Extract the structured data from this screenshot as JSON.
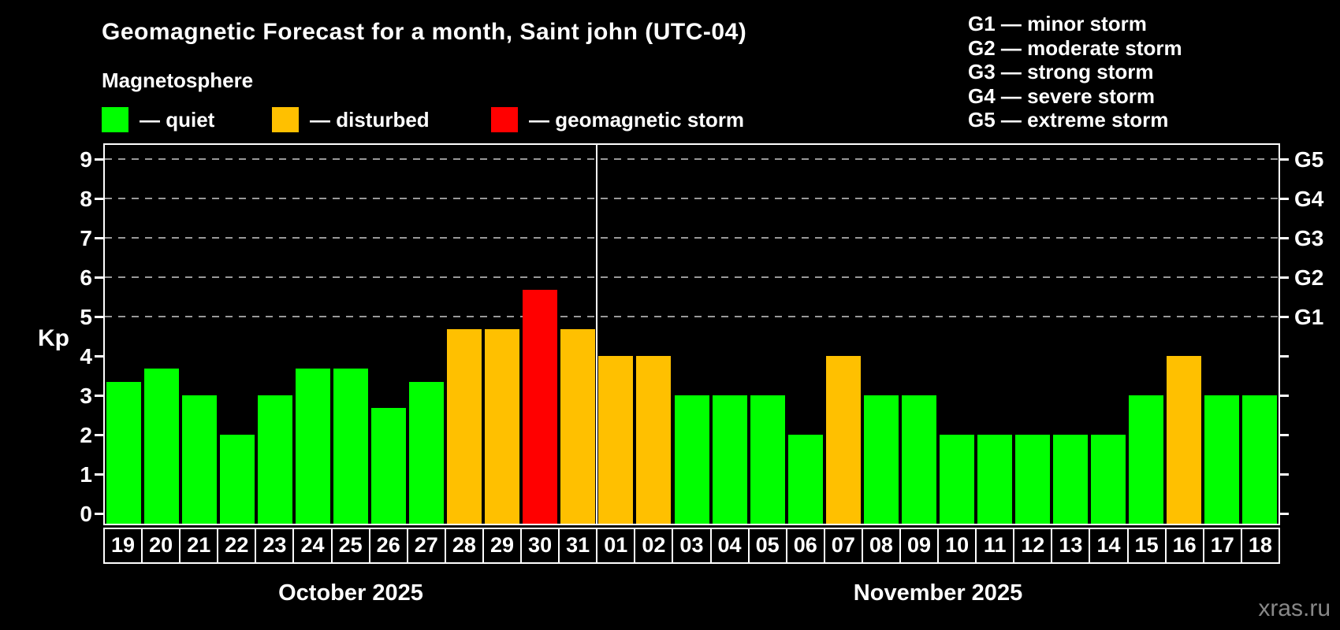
{
  "header": {
    "title": "Geomagnetic Forecast for a month, Saint john (UTC-04)",
    "subtitle": "Magnetosphere"
  },
  "legend": {
    "items": [
      {
        "status": "quiet",
        "label": "— quiet"
      },
      {
        "status": "disturbed",
        "label": "— disturbed"
      },
      {
        "status": "storm",
        "label": "— geomagnetic storm"
      }
    ]
  },
  "g_scale_legend": {
    "items": [
      "G1 — minor storm",
      "G2 — moderate storm",
      "G3 — strong storm",
      "G4 — severe storm",
      "G5 — extreme storm"
    ]
  },
  "watermark": "xras.ru",
  "chart_data": {
    "type": "bar",
    "title": "Geomagnetic Forecast for a month, Saint john (UTC-04)",
    "ylabel": "Kp",
    "ylim": [
      0,
      9.4
    ],
    "y_ticks": [
      0,
      1,
      2,
      3,
      4,
      5,
      6,
      7,
      8,
      9
    ],
    "gridlines_at_kp": [
      5,
      6,
      7,
      8,
      9
    ],
    "grid": "dashed-horizontal",
    "right_axis_labels": [
      {
        "code": "G1",
        "kp": 5
      },
      {
        "code": "G2",
        "kp": 6
      },
      {
        "code": "G3",
        "kp": 7
      },
      {
        "code": "G4",
        "kp": 8
      },
      {
        "code": "G5",
        "kp": 9
      }
    ],
    "status_colors": {
      "quiet": "#00ff00",
      "disturbed": "#ffc000",
      "storm": "#ff0000"
    },
    "groups": [
      {
        "month": "October 2025",
        "days": [
          {
            "date": "19",
            "value": 3.33,
            "status": "quiet"
          },
          {
            "date": "20",
            "value": 3.67,
            "status": "quiet"
          },
          {
            "date": "21",
            "value": 3.0,
            "status": "quiet"
          },
          {
            "date": "22",
            "value": 2.0,
            "status": "quiet"
          },
          {
            "date": "23",
            "value": 3.0,
            "status": "quiet"
          },
          {
            "date": "24",
            "value": 3.67,
            "status": "quiet"
          },
          {
            "date": "25",
            "value": 3.67,
            "status": "quiet"
          },
          {
            "date": "26",
            "value": 2.67,
            "status": "quiet"
          },
          {
            "date": "27",
            "value": 3.33,
            "status": "quiet"
          },
          {
            "date": "28",
            "value": 4.67,
            "status": "disturbed"
          },
          {
            "date": "29",
            "value": 4.67,
            "status": "disturbed"
          },
          {
            "date": "30",
            "value": 5.67,
            "status": "storm"
          },
          {
            "date": "31",
            "value": 4.67,
            "status": "disturbed"
          }
        ]
      },
      {
        "month": "November 2025",
        "days": [
          {
            "date": "01",
            "value": 4.0,
            "status": "disturbed"
          },
          {
            "date": "02",
            "value": 4.0,
            "status": "disturbed"
          },
          {
            "date": "03",
            "value": 3.0,
            "status": "quiet"
          },
          {
            "date": "04",
            "value": 3.0,
            "status": "quiet"
          },
          {
            "date": "05",
            "value": 3.0,
            "status": "quiet"
          },
          {
            "date": "06",
            "value": 2.0,
            "status": "quiet"
          },
          {
            "date": "07",
            "value": 4.0,
            "status": "disturbed"
          },
          {
            "date": "08",
            "value": 3.0,
            "status": "quiet"
          },
          {
            "date": "09",
            "value": 3.0,
            "status": "quiet"
          },
          {
            "date": "10",
            "value": 2.0,
            "status": "quiet"
          },
          {
            "date": "11",
            "value": 2.0,
            "status": "quiet"
          },
          {
            "date": "12",
            "value": 2.0,
            "status": "quiet"
          },
          {
            "date": "13",
            "value": 2.0,
            "status": "quiet"
          },
          {
            "date": "14",
            "value": 2.0,
            "status": "quiet"
          },
          {
            "date": "15",
            "value": 3.0,
            "status": "quiet"
          },
          {
            "date": "16",
            "value": 4.0,
            "status": "disturbed"
          },
          {
            "date": "17",
            "value": 3.0,
            "status": "quiet"
          },
          {
            "date": "18",
            "value": 3.0,
            "status": "quiet"
          }
        ]
      }
    ]
  }
}
